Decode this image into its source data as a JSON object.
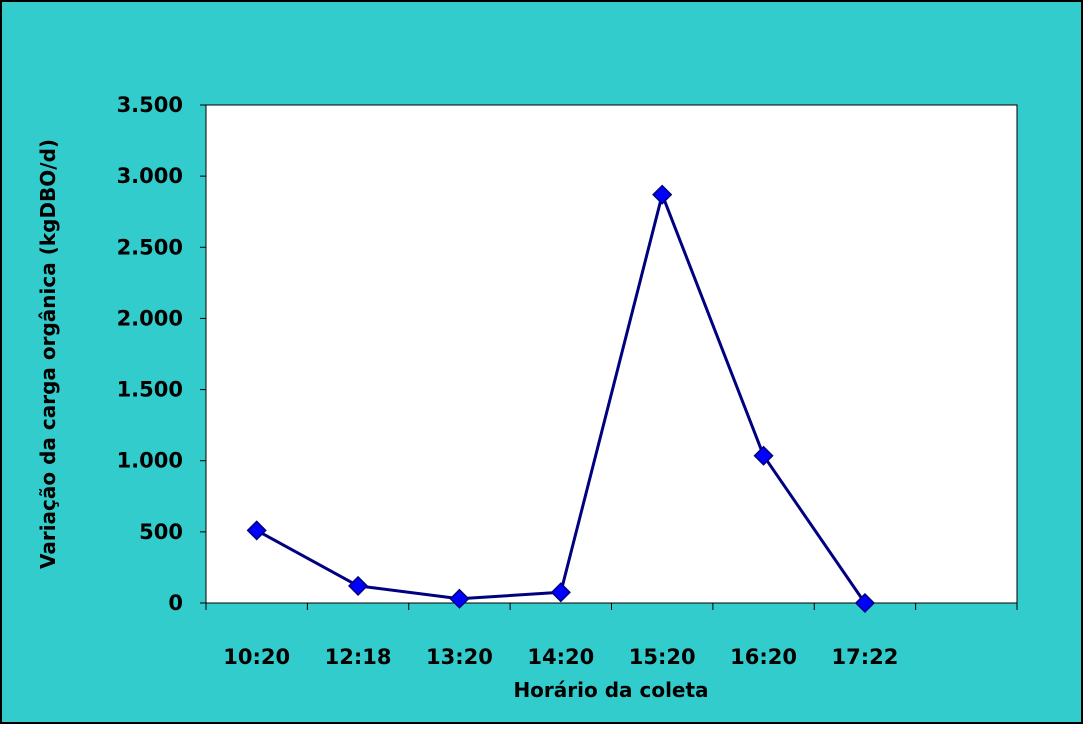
{
  "colors": {
    "background": "#33CCCC",
    "plot_area": "#FFFFFF",
    "line": "#000080",
    "marker": "#0000FF",
    "axis": "#000000"
  },
  "chart_data": {
    "type": "line",
    "title": "",
    "xlabel": "Horário da coleta",
    "ylabel": "Variação da carga orgânica (kgDBO/d)",
    "categories": [
      "10:20",
      "12:18",
      "13:20",
      "14:20",
      "15:20",
      "16:20",
      "17:22",
      ""
    ],
    "series": [
      {
        "values": [
          510,
          120,
          30,
          75,
          2870,
          1035,
          0,
          null
        ],
        "marker": "diamond"
      }
    ],
    "ylim": [
      0,
      3500
    ],
    "yticks": [
      0,
      500,
      1000,
      1500,
      2000,
      2500,
      3000,
      3500
    ],
    "ytick_labels": [
      "0",
      "500",
      "1.000",
      "1.500",
      "2.000",
      "2.500",
      "3.000",
      "3.500"
    ],
    "grid": false,
    "legend": "none"
  }
}
